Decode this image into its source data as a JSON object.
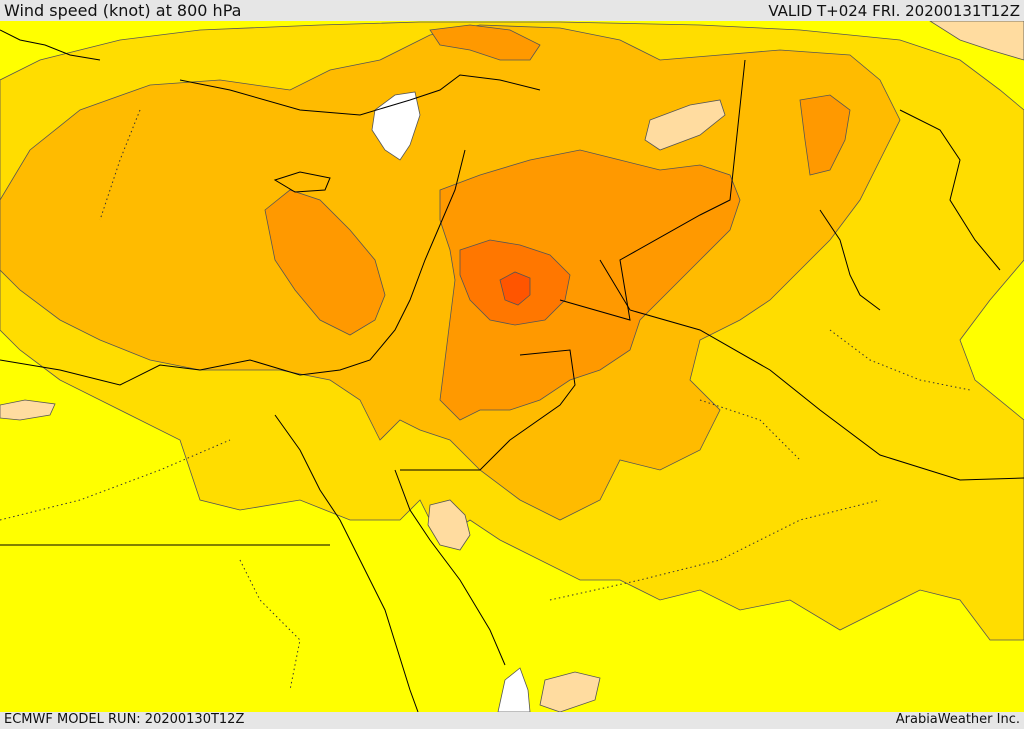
{
  "header": {
    "title": "Wind speed (knot) at 800 hPa",
    "valid_time": "VALID T+024 FRI. 20200131T12Z"
  },
  "footer": {
    "model_run": "ECMWF MODEL RUN: 20200130T12Z",
    "credit": "ArabiaWeather Inc."
  },
  "palette": {
    "level_0": "#ffffff",
    "level_1": "#ffdca0",
    "level_2": "#ffff00",
    "level_3": "#ffdd00",
    "level_4": "#ffbb00",
    "level_5": "#ff9900",
    "level_6": "#ff7700",
    "level_7": "#ff5500",
    "contour": "#555555",
    "border": "#000000"
  }
}
